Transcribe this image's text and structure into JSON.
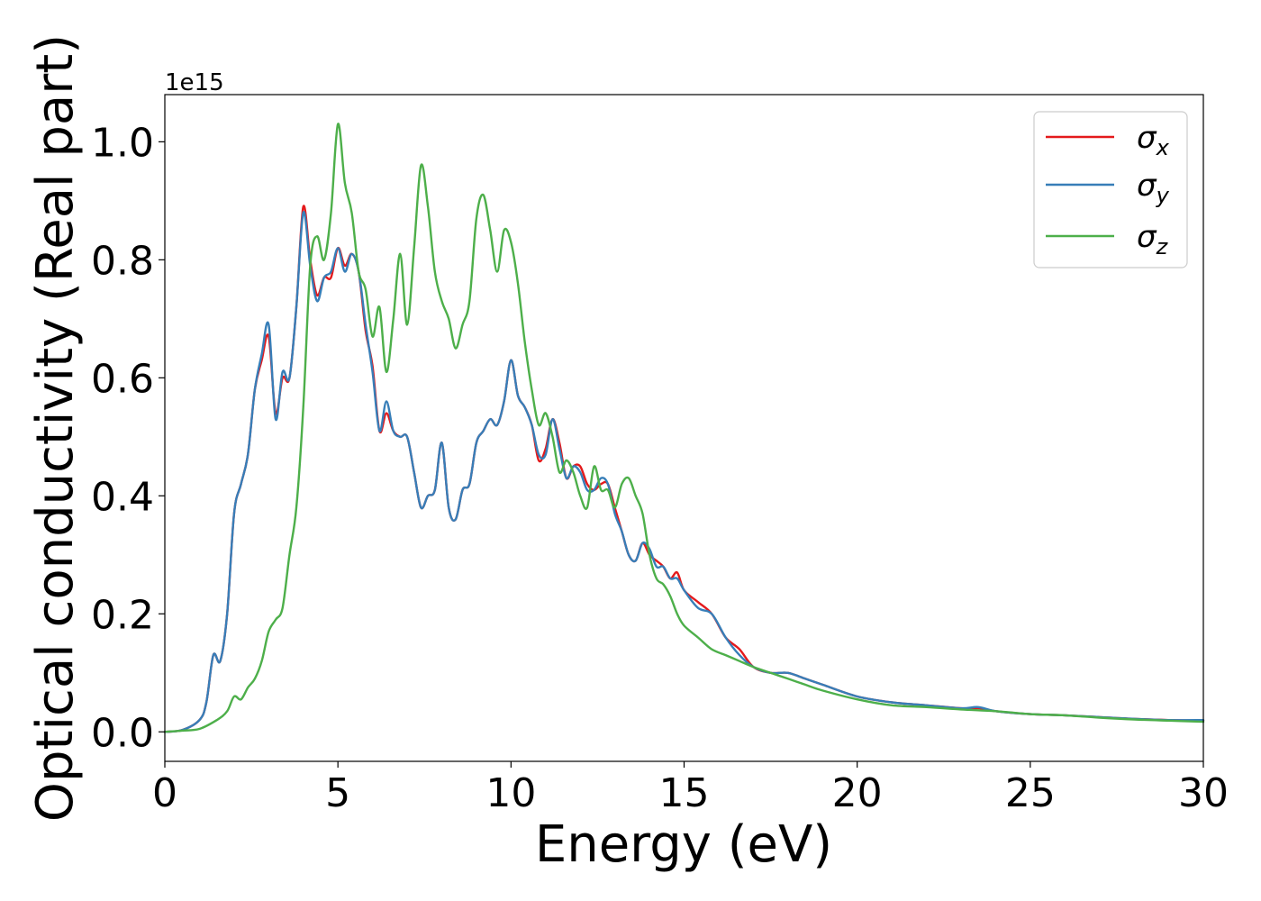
{
  "chart_data": {
    "type": "line",
    "xlabel": "Energy (eV)",
    "ylabel": "Optical conductivity (Real part)",
    "y_offset_label": "1e15",
    "y_multiplier": 1000000000000000.0,
    "xlim": [
      0,
      30
    ],
    "ylim": [
      -0.05,
      1.08
    ],
    "x_ticks": [
      0,
      5,
      10,
      15,
      20,
      25,
      30
    ],
    "x_tick_labels": [
      "0",
      "5",
      "10",
      "15",
      "20",
      "25",
      "30"
    ],
    "y_ticks": [
      0.0,
      0.2,
      0.4,
      0.6,
      0.8,
      1.0
    ],
    "y_tick_labels": [
      "0.0",
      "0.2",
      "0.4",
      "0.6",
      "0.8",
      "1.0"
    ],
    "grid": false,
    "legend_position": "top-right",
    "series": [
      {
        "name": "σx",
        "name_base": "σ",
        "name_sub": "x",
        "color": "#e41a1c",
        "x": [
          0,
          0.5,
          1.0,
          1.2,
          1.4,
          1.6,
          1.8,
          2.0,
          2.2,
          2.4,
          2.6,
          2.8,
          3.0,
          3.2,
          3.4,
          3.6,
          3.8,
          4.0,
          4.2,
          4.4,
          4.6,
          4.8,
          5.0,
          5.2,
          5.4,
          5.6,
          5.8,
          6.0,
          6.2,
          6.4,
          6.6,
          6.8,
          7.0,
          7.2,
          7.4,
          7.6,
          7.8,
          8.0,
          8.2,
          8.4,
          8.6,
          8.8,
          9.0,
          9.2,
          9.4,
          9.6,
          9.8,
          10.0,
          10.2,
          10.4,
          10.6,
          10.8,
          11.0,
          11.2,
          11.4,
          11.6,
          11.8,
          12.0,
          12.2,
          12.4,
          12.6,
          12.8,
          13.0,
          13.2,
          13.4,
          13.6,
          13.8,
          14.0,
          14.2,
          14.4,
          14.6,
          14.8,
          15.0,
          15.4,
          15.8,
          16.2,
          16.6,
          17.0,
          17.5,
          18.0,
          18.5,
          19.0,
          20.0,
          21.0,
          22.0,
          23.0,
          23.5,
          24.0,
          25.0,
          26.0,
          27.0,
          28.0,
          29.0,
          30.0
        ],
        "y": [
          0.0,
          0.003,
          0.02,
          0.05,
          0.13,
          0.12,
          0.2,
          0.37,
          0.42,
          0.47,
          0.58,
          0.63,
          0.67,
          0.54,
          0.6,
          0.6,
          0.72,
          0.89,
          0.8,
          0.74,
          0.77,
          0.77,
          0.82,
          0.79,
          0.81,
          0.78,
          0.68,
          0.62,
          0.51,
          0.54,
          0.51,
          0.5,
          0.5,
          0.44,
          0.38,
          0.4,
          0.41,
          0.49,
          0.38,
          0.36,
          0.41,
          0.42,
          0.49,
          0.51,
          0.53,
          0.52,
          0.56,
          0.63,
          0.57,
          0.55,
          0.52,
          0.46,
          0.48,
          0.53,
          0.49,
          0.43,
          0.45,
          0.45,
          0.42,
          0.41,
          0.42,
          0.42,
          0.38,
          0.34,
          0.3,
          0.29,
          0.32,
          0.3,
          0.29,
          0.28,
          0.26,
          0.27,
          0.24,
          0.22,
          0.2,
          0.16,
          0.14,
          0.11,
          0.1,
          0.1,
          0.09,
          0.08,
          0.06,
          0.05,
          0.045,
          0.04,
          0.04,
          0.035,
          0.03,
          0.028,
          0.025,
          0.022,
          0.02,
          0.019
        ]
      },
      {
        "name": "σy",
        "name_base": "σ",
        "name_sub": "y",
        "color": "#377eb8",
        "x": [
          0,
          0.5,
          1.0,
          1.2,
          1.4,
          1.6,
          1.8,
          2.0,
          2.2,
          2.4,
          2.6,
          2.8,
          3.0,
          3.2,
          3.4,
          3.6,
          3.8,
          4.0,
          4.2,
          4.4,
          4.6,
          4.8,
          5.0,
          5.2,
          5.4,
          5.6,
          5.8,
          6.0,
          6.2,
          6.4,
          6.6,
          6.8,
          7.0,
          7.2,
          7.4,
          7.6,
          7.8,
          8.0,
          8.2,
          8.4,
          8.6,
          8.8,
          9.0,
          9.2,
          9.4,
          9.6,
          9.8,
          10.0,
          10.2,
          10.4,
          10.6,
          10.8,
          11.0,
          11.2,
          11.4,
          11.6,
          11.8,
          12.0,
          12.2,
          12.4,
          12.6,
          12.8,
          13.0,
          13.2,
          13.4,
          13.6,
          13.8,
          14.0,
          14.2,
          14.4,
          14.6,
          14.8,
          15.0,
          15.4,
          15.8,
          16.2,
          16.6,
          17.0,
          17.5,
          18.0,
          18.5,
          19.0,
          20.0,
          21.0,
          22.0,
          23.0,
          23.5,
          24.0,
          25.0,
          26.0,
          27.0,
          28.0,
          29.0,
          30.0
        ],
        "y": [
          0.0,
          0.003,
          0.02,
          0.05,
          0.13,
          0.12,
          0.2,
          0.37,
          0.42,
          0.47,
          0.58,
          0.64,
          0.69,
          0.53,
          0.61,
          0.6,
          0.72,
          0.88,
          0.79,
          0.73,
          0.77,
          0.78,
          0.82,
          0.78,
          0.81,
          0.78,
          0.69,
          0.61,
          0.51,
          0.56,
          0.51,
          0.5,
          0.5,
          0.44,
          0.38,
          0.4,
          0.41,
          0.49,
          0.38,
          0.36,
          0.41,
          0.42,
          0.49,
          0.51,
          0.53,
          0.52,
          0.56,
          0.63,
          0.57,
          0.55,
          0.52,
          0.47,
          0.47,
          0.53,
          0.48,
          0.43,
          0.45,
          0.44,
          0.41,
          0.41,
          0.43,
          0.42,
          0.37,
          0.34,
          0.3,
          0.29,
          0.32,
          0.31,
          0.28,
          0.28,
          0.26,
          0.26,
          0.24,
          0.21,
          0.2,
          0.16,
          0.13,
          0.11,
          0.1,
          0.1,
          0.09,
          0.08,
          0.06,
          0.05,
          0.045,
          0.04,
          0.042,
          0.035,
          0.03,
          0.028,
          0.025,
          0.022,
          0.02,
          0.02
        ]
      },
      {
        "name": "σz",
        "name_base": "σ",
        "name_sub": "z",
        "color": "#4daf4a",
        "x": [
          0,
          0.5,
          1.0,
          1.5,
          1.8,
          2.0,
          2.2,
          2.4,
          2.6,
          2.8,
          3.0,
          3.2,
          3.4,
          3.6,
          3.8,
          4.0,
          4.2,
          4.4,
          4.6,
          4.8,
          5.0,
          5.2,
          5.4,
          5.6,
          5.8,
          6.0,
          6.2,
          6.4,
          6.6,
          6.8,
          7.0,
          7.2,
          7.4,
          7.6,
          7.8,
          8.0,
          8.2,
          8.4,
          8.6,
          8.8,
          9.0,
          9.2,
          9.4,
          9.6,
          9.8,
          10.0,
          10.2,
          10.4,
          10.6,
          10.8,
          11.0,
          11.2,
          11.4,
          11.6,
          11.8,
          12.0,
          12.2,
          12.4,
          12.6,
          12.8,
          13.0,
          13.2,
          13.4,
          13.6,
          13.8,
          14.0,
          14.2,
          14.4,
          14.6,
          14.8,
          15.0,
          15.4,
          15.8,
          16.2,
          16.6,
          17.0,
          17.5,
          18.0,
          18.5,
          19.0,
          20.0,
          21.0,
          22.0,
          23.0,
          24.0,
          25.0,
          26.0,
          27.0,
          28.0,
          29.0,
          30.0
        ],
        "y": [
          0.0,
          0.002,
          0.005,
          0.02,
          0.035,
          0.06,
          0.055,
          0.075,
          0.09,
          0.12,
          0.17,
          0.19,
          0.21,
          0.3,
          0.38,
          0.55,
          0.79,
          0.84,
          0.8,
          0.88,
          1.03,
          0.93,
          0.88,
          0.78,
          0.75,
          0.67,
          0.72,
          0.61,
          0.7,
          0.81,
          0.69,
          0.82,
          0.96,
          0.89,
          0.78,
          0.73,
          0.7,
          0.65,
          0.69,
          0.73,
          0.87,
          0.91,
          0.85,
          0.78,
          0.85,
          0.83,
          0.76,
          0.66,
          0.58,
          0.52,
          0.54,
          0.5,
          0.44,
          0.46,
          0.44,
          0.4,
          0.38,
          0.45,
          0.41,
          0.41,
          0.38,
          0.42,
          0.43,
          0.4,
          0.37,
          0.3,
          0.26,
          0.25,
          0.23,
          0.2,
          0.18,
          0.16,
          0.14,
          0.13,
          0.12,
          0.11,
          0.1,
          0.09,
          0.08,
          0.07,
          0.055,
          0.045,
          0.042,
          0.038,
          0.035,
          0.03,
          0.028,
          0.024,
          0.021,
          0.019,
          0.017
        ]
      }
    ]
  }
}
